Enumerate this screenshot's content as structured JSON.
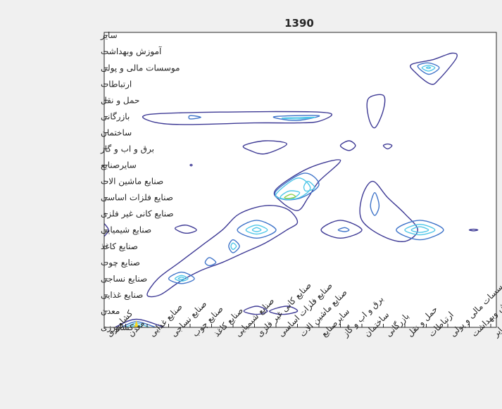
{
  "chart_data": {
    "type": "contour",
    "title": "1390",
    "xlabel": "",
    "ylabel": "",
    "grid": false,
    "legend": "none",
    "colors": {
      "figure_bg": "#f0f0f0",
      "axes_bg": "#ffffff",
      "axis": "#262626",
      "contour_outer": "#3e3a95",
      "contour_mid": "#3f74c9",
      "contour_inner": "#4fc7e8",
      "peak_yellow": "#f9d520",
      "peak_green": "#8fd14b"
    },
    "x_categories": [
      "کشاورزی",
      "معدن",
      "صنایع غذایی",
      "صنایع نساجی",
      "صنایع چوب",
      "صنایع کاغذ",
      "صنایع شیمیایی",
      "صنایع کانی غیر فلزی",
      "صنایع فلزات اساسی",
      "صنایع ماشین الات",
      "سایرصنایع",
      "برق و اب و گاز",
      "ساختمان",
      "بازرگانی",
      "حمل و نقل",
      "ارتباطات",
      "موسسات مالی و پولی",
      "آموزش وبهداشت",
      "سایر"
    ],
    "y_categories": [
      "کشاورزی",
      "معدن",
      "صنایع غذایی",
      "صنایع  نساجی",
      "صنایع چوب",
      "صنایع کاغذ",
      "صنایع شیمیایی",
      "صنایع کانی غیر فلزی",
      "صنایع فلزات اساسی",
      "صنایع ماشین الات",
      "سایرصنایع",
      "برق و اب و گاز",
      "ساختمان",
      "بازرگانی",
      "حمل و نقل",
      "ارتباطات",
      "موسسات مالی و پولی",
      "آموزش وبهداشت",
      "سایر"
    ],
    "xlim": [
      1,
      19
    ],
    "ylim": [
      1,
      19
    ],
    "contours": [
      {
        "level": 1,
        "points": [
          [
            2.8,
            14.0
          ],
          [
            4.0,
            14.2
          ],
          [
            9.0,
            14.3
          ],
          [
            11.5,
            14.2
          ],
          [
            11.0,
            13.7
          ],
          [
            10.0,
            13.6
          ],
          [
            8.0,
            13.6
          ],
          [
            5.0,
            13.5
          ],
          [
            3.5,
            13.6
          ]
        ]
      },
      {
        "level": 2,
        "points": [
          [
            5.0,
            14.05
          ],
          [
            5.5,
            13.95
          ],
          [
            5.0,
            13.85
          ]
        ]
      },
      {
        "level": 2,
        "points": [
          [
            9.0,
            14.0
          ],
          [
            11.0,
            14.05
          ],
          [
            10.0,
            13.75
          ],
          [
            9.2,
            13.85
          ]
        ]
      },
      {
        "level": 3,
        "points": [
          [
            9.3,
            13.9
          ],
          [
            10.8,
            13.95
          ],
          [
            10.0,
            13.85
          ]
        ]
      },
      {
        "level": 1,
        "points": [
          [
            13.3,
            15.1
          ],
          [
            14.0,
            15.3
          ],
          [
            14.0,
            14.4
          ],
          [
            13.6,
            13.3
          ],
          [
            13.3,
            14.0
          ]
        ]
      },
      {
        "level": 1,
        "points": [
          [
            15.3,
            17.2
          ],
          [
            16.3,
            17.5
          ],
          [
            17.2,
            17.9
          ],
          [
            17.4,
            17.6
          ],
          [
            16.6,
            16.3
          ],
          [
            16.2,
            16.0
          ],
          [
            15.5,
            16.7
          ]
        ]
      },
      {
        "level": 2,
        "points": [
          [
            15.6,
            17.1
          ],
          [
            16.1,
            17.3
          ],
          [
            16.6,
            17.0
          ],
          [
            16.1,
            16.6
          ]
        ]
      },
      {
        "level": 3,
        "points": [
          [
            15.8,
            17.0
          ],
          [
            16.1,
            17.15
          ],
          [
            16.4,
            17.0
          ],
          [
            16.1,
            16.8
          ]
        ]
      },
      {
        "level": 4,
        "points": [
          [
            16.0,
            17.0
          ],
          [
            16.1,
            17.05
          ],
          [
            16.2,
            17.0
          ],
          [
            16.1,
            16.95
          ]
        ]
      },
      {
        "level": 1,
        "points": [
          [
            7.5,
            12.2
          ],
          [
            8.5,
            12.5
          ],
          [
            9.5,
            12.3
          ],
          [
            8.5,
            11.7
          ],
          [
            7.8,
            11.9
          ]
        ]
      },
      {
        "level": 1,
        "points": [
          [
            12.0,
            12.2
          ],
          [
            12.4,
            12.5
          ],
          [
            12.7,
            12.2
          ],
          [
            12.4,
            11.9
          ]
        ]
      },
      {
        "level": 1,
        "points": [
          [
            14.0,
            12.2
          ],
          [
            14.2,
            12.3
          ],
          [
            14.4,
            12.2
          ],
          [
            14.2,
            12.0
          ]
        ]
      },
      {
        "level": 1,
        "points": [
          [
            9.0,
            9.5
          ],
          [
            10.5,
            10.8
          ],
          [
            12.0,
            11.3
          ],
          [
            11.0,
            10.0
          ],
          [
            10.5,
            9.0
          ],
          [
            10.0,
            8.2
          ],
          [
            9.2,
            8.8
          ]
        ]
      },
      {
        "level": 2,
        "points": [
          [
            9.0,
            9.4
          ],
          [
            10.3,
            10.5
          ],
          [
            11.0,
            9.8
          ],
          [
            10.2,
            9.0
          ],
          [
            9.3,
            8.9
          ]
        ]
      },
      {
        "level": 3,
        "points": [
          [
            9.0,
            9.2
          ],
          [
            10.0,
            10.2
          ],
          [
            10.6,
            9.6
          ],
          [
            10.1,
            9.0
          ],
          [
            9.4,
            8.9
          ]
        ]
      },
      {
        "level": 4,
        "points": [
          [
            9.2,
            9.0
          ],
          [
            9.6,
            9.4
          ],
          [
            10.1,
            9.3
          ],
          [
            9.7,
            8.9
          ]
        ]
      },
      {
        "level": 5,
        "points": [
          [
            9.4,
            9.0
          ],
          [
            9.7,
            9.2
          ],
          [
            9.9,
            9.05
          ],
          [
            9.6,
            8.95
          ]
        ]
      },
      {
        "level": 4,
        "points": [
          [
            10.3,
            9.7
          ],
          [
            10.5,
            10.0
          ],
          [
            10.8,
            9.6
          ],
          [
            10.4,
            9.4
          ]
        ]
      },
      {
        "level": 1,
        "points": [
          [
            13.0,
            9.0
          ],
          [
            13.5,
            10.0
          ],
          [
            14.2,
            9.0
          ],
          [
            15.0,
            8.0
          ],
          [
            15.6,
            7.0
          ],
          [
            15.0,
            6.3
          ],
          [
            14.0,
            6.6
          ],
          [
            13.0,
            7.6
          ]
        ]
      },
      {
        "level": 2,
        "points": [
          [
            13.4,
            8.5
          ],
          [
            13.6,
            9.3
          ],
          [
            13.8,
            8.5
          ],
          [
            13.6,
            7.9
          ]
        ]
      },
      {
        "level": 2,
        "points": [
          [
            14.6,
            7.0
          ],
          [
            15.7,
            7.6
          ],
          [
            16.8,
            7.0
          ],
          [
            15.7,
            6.4
          ]
        ]
      },
      {
        "level": 3,
        "points": [
          [
            15.0,
            7.0
          ],
          [
            15.7,
            7.35
          ],
          [
            16.4,
            7.0
          ],
          [
            15.7,
            6.7
          ]
        ]
      },
      {
        "level": 4,
        "points": [
          [
            15.3,
            7.0
          ],
          [
            15.7,
            7.2
          ],
          [
            16.1,
            7.0
          ],
          [
            15.7,
            6.85
          ]
        ]
      },
      {
        "level": 1,
        "points": [
          [
            1.0,
            7.4
          ],
          [
            1.2,
            7.0
          ],
          [
            1.0,
            6.6
          ]
        ]
      },
      {
        "level": 1,
        "points": [
          [
            4.3,
            7.1
          ],
          [
            4.8,
            7.3
          ],
          [
            5.3,
            7.0
          ],
          [
            4.8,
            6.8
          ]
        ]
      },
      {
        "level": 1,
        "points": [
          [
            11.1,
            7.0
          ],
          [
            12.0,
            7.6
          ],
          [
            13.0,
            7.0
          ],
          [
            12.0,
            6.5
          ]
        ]
      },
      {
        "level": 2,
        "points": [
          [
            11.9,
            7.0
          ],
          [
            12.2,
            7.15
          ],
          [
            12.4,
            7.0
          ],
          [
            12.2,
            6.9
          ]
        ]
      },
      {
        "level": 1,
        "points": [
          [
            18.0,
            7.0
          ],
          [
            18.2,
            7.05
          ],
          [
            18.4,
            7.0
          ],
          [
            18.2,
            6.95
          ]
        ]
      },
      {
        "level": 1,
        "points": [
          [
            3.0,
            3.0
          ],
          [
            3.5,
            4.0
          ],
          [
            4.5,
            5.0
          ],
          [
            5.5,
            6.0
          ],
          [
            6.5,
            7.0
          ],
          [
            7.3,
            8.0
          ],
          [
            8.5,
            8.5
          ],
          [
            9.5,
            8.3
          ],
          [
            10.0,
            7.5
          ],
          [
            9.5,
            7.0
          ],
          [
            8.5,
            6.2
          ],
          [
            7.5,
            5.6
          ],
          [
            6.5,
            5.0
          ],
          [
            5.5,
            4.5
          ],
          [
            4.5,
            3.8
          ],
          [
            3.6,
            3.0
          ]
        ]
      },
      {
        "level": 2,
        "points": [
          [
            4.0,
            4.0
          ],
          [
            4.6,
            4.4
          ],
          [
            5.2,
            4.0
          ],
          [
            4.6,
            3.7
          ]
        ]
      },
      {
        "level": 3,
        "points": [
          [
            4.3,
            4.0
          ],
          [
            4.6,
            4.2
          ],
          [
            4.9,
            4.0
          ],
          [
            4.6,
            3.85
          ]
        ]
      },
      {
        "level": 4,
        "points": [
          [
            4.45,
            4.0
          ],
          [
            4.6,
            4.1
          ],
          [
            4.75,
            4.0
          ],
          [
            4.6,
            3.95
          ]
        ]
      },
      {
        "level": 2,
        "points": [
          [
            7.2,
            7.0
          ],
          [
            8.1,
            7.6
          ],
          [
            9.0,
            7.0
          ],
          [
            8.1,
            6.5
          ]
        ]
      },
      {
        "level": 3,
        "points": [
          [
            7.6,
            7.0
          ],
          [
            8.1,
            7.3
          ],
          [
            8.6,
            7.0
          ],
          [
            8.1,
            6.75
          ]
        ]
      },
      {
        "level": 4,
        "points": [
          [
            7.9,
            7.0
          ],
          [
            8.1,
            7.15
          ],
          [
            8.3,
            7.0
          ],
          [
            8.1,
            6.9
          ]
        ]
      },
      {
        "level": 2,
        "points": [
          [
            6.8,
            6.0
          ],
          [
            7.0,
            6.4
          ],
          [
            7.3,
            6.0
          ],
          [
            7.0,
            5.6
          ]
        ]
      },
      {
        "level": 3,
        "points": [
          [
            6.9,
            6.0
          ],
          [
            7.0,
            6.2
          ],
          [
            7.15,
            6.0
          ],
          [
            7.0,
            5.8
          ]
        ]
      },
      {
        "level": 2,
        "points": [
          [
            5.7,
            5.0
          ],
          [
            5.9,
            5.3
          ],
          [
            6.2,
            5.0
          ],
          [
            5.9,
            4.8
          ]
        ]
      },
      {
        "level": 1,
        "points": [
          [
            7.5,
            2.0
          ],
          [
            8.1,
            2.3
          ],
          [
            8.6,
            2.0
          ],
          [
            8.1,
            1.8
          ]
        ]
      },
      {
        "level": 1,
        "points": [
          [
            8.7,
            2.0
          ],
          [
            9.5,
            2.3
          ],
          [
            10.0,
            2.0
          ],
          [
            9.3,
            1.8
          ]
        ]
      },
      {
        "level": 1,
        "points": [
          [
            5.0,
            11.0
          ],
          [
            5.05,
            11.05
          ],
          [
            5.1,
            11.0
          ],
          [
            5.05,
            10.95
          ]
        ]
      },
      {
        "level": 1,
        "points": [
          [
            1.5,
            1.0
          ],
          [
            2.5,
            1.5
          ],
          [
            3.8,
            1.0
          ]
        ]
      },
      {
        "level": 2,
        "points": [
          [
            1.8,
            1.0
          ],
          [
            2.5,
            1.35
          ],
          [
            3.4,
            1.0
          ]
        ]
      },
      {
        "level": 3,
        "points": [
          [
            2.0,
            1.0
          ],
          [
            2.5,
            1.25
          ],
          [
            3.1,
            1.0
          ]
        ]
      },
      {
        "level": 4,
        "points": [
          [
            2.2,
            1.0
          ],
          [
            2.5,
            1.15
          ],
          [
            2.8,
            1.0
          ]
        ]
      },
      {
        "level": 5,
        "points": [
          [
            2.35,
            1.0
          ],
          [
            2.5,
            1.08
          ],
          [
            2.65,
            1.0
          ]
        ]
      }
    ]
  }
}
